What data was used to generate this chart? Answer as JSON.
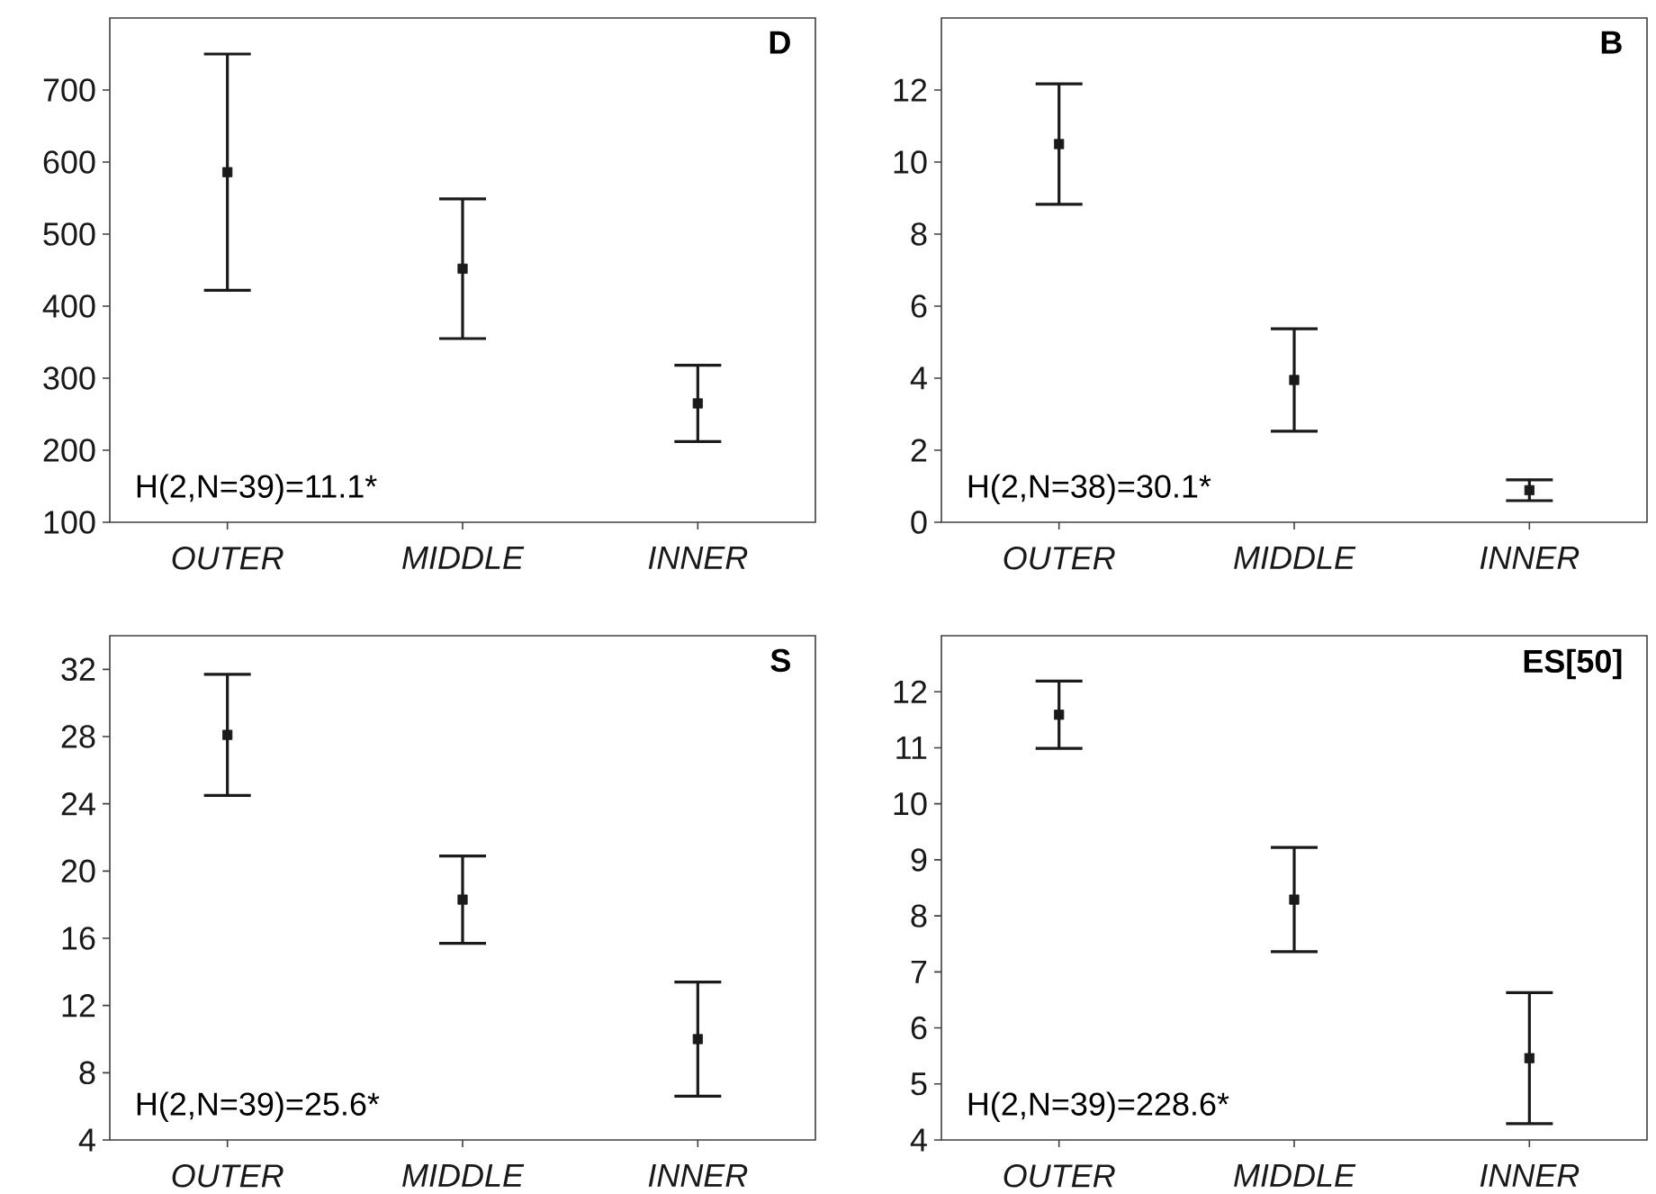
{
  "chart_data": [
    {
      "type": "scatter",
      "title": "D",
      "categories": [
        "OUTER",
        "MIDDLE",
        "INNER"
      ],
      "values": [
        586,
        452,
        265
      ],
      "errors": [
        164,
        97,
        53
      ],
      "ylim": [
        100,
        800
      ],
      "yticks": [
        100,
        200,
        300,
        400,
        500,
        600,
        700
      ],
      "annotations": [
        "H(2,N=39)=11.1*"
      ],
      "marker": "square",
      "color": "#1a1a1a"
    },
    {
      "type": "scatter",
      "title": "B",
      "categories": [
        "OUTER",
        "MIDDLE",
        "INNER"
      ],
      "values": [
        10.5,
        3.95,
        0.89
      ],
      "errors": [
        1.67,
        1.42,
        0.29
      ],
      "ylim": [
        0,
        14
      ],
      "yticks": [
        0,
        2,
        4,
        6,
        8,
        10,
        12
      ],
      "annotations": [
        "H(2,N=38)=30.1*"
      ],
      "marker": "square",
      "color": "#1a1a1a"
    },
    {
      "type": "scatter",
      "title": "S",
      "categories": [
        "OUTER",
        "MIDDLE",
        "INNER"
      ],
      "values": [
        28.1,
        18.3,
        10.0
      ],
      "errors": [
        3.6,
        2.6,
        3.4
      ],
      "ylim": [
        4,
        34
      ],
      "yticks": [
        4,
        8,
        12,
        16,
        20,
        24,
        28,
        32
      ],
      "annotations": [
        "H(2,N=39)=25.6*"
      ],
      "marker": "square",
      "color": "#1a1a1a"
    },
    {
      "type": "scatter",
      "title": "ES[50]",
      "categories": [
        "OUTER",
        "MIDDLE",
        "INNER"
      ],
      "values": [
        11.59,
        8.29,
        5.46
      ],
      "errors": [
        0.6,
        0.93,
        1.17
      ],
      "ylim": [
        4,
        13
      ],
      "yticks": [
        4,
        5,
        6,
        7,
        8,
        9,
        10,
        11,
        12
      ],
      "annotations": [
        "H(2,N=39)=228.6*"
      ],
      "marker": "square",
      "color": "#1a1a1a"
    }
  ]
}
